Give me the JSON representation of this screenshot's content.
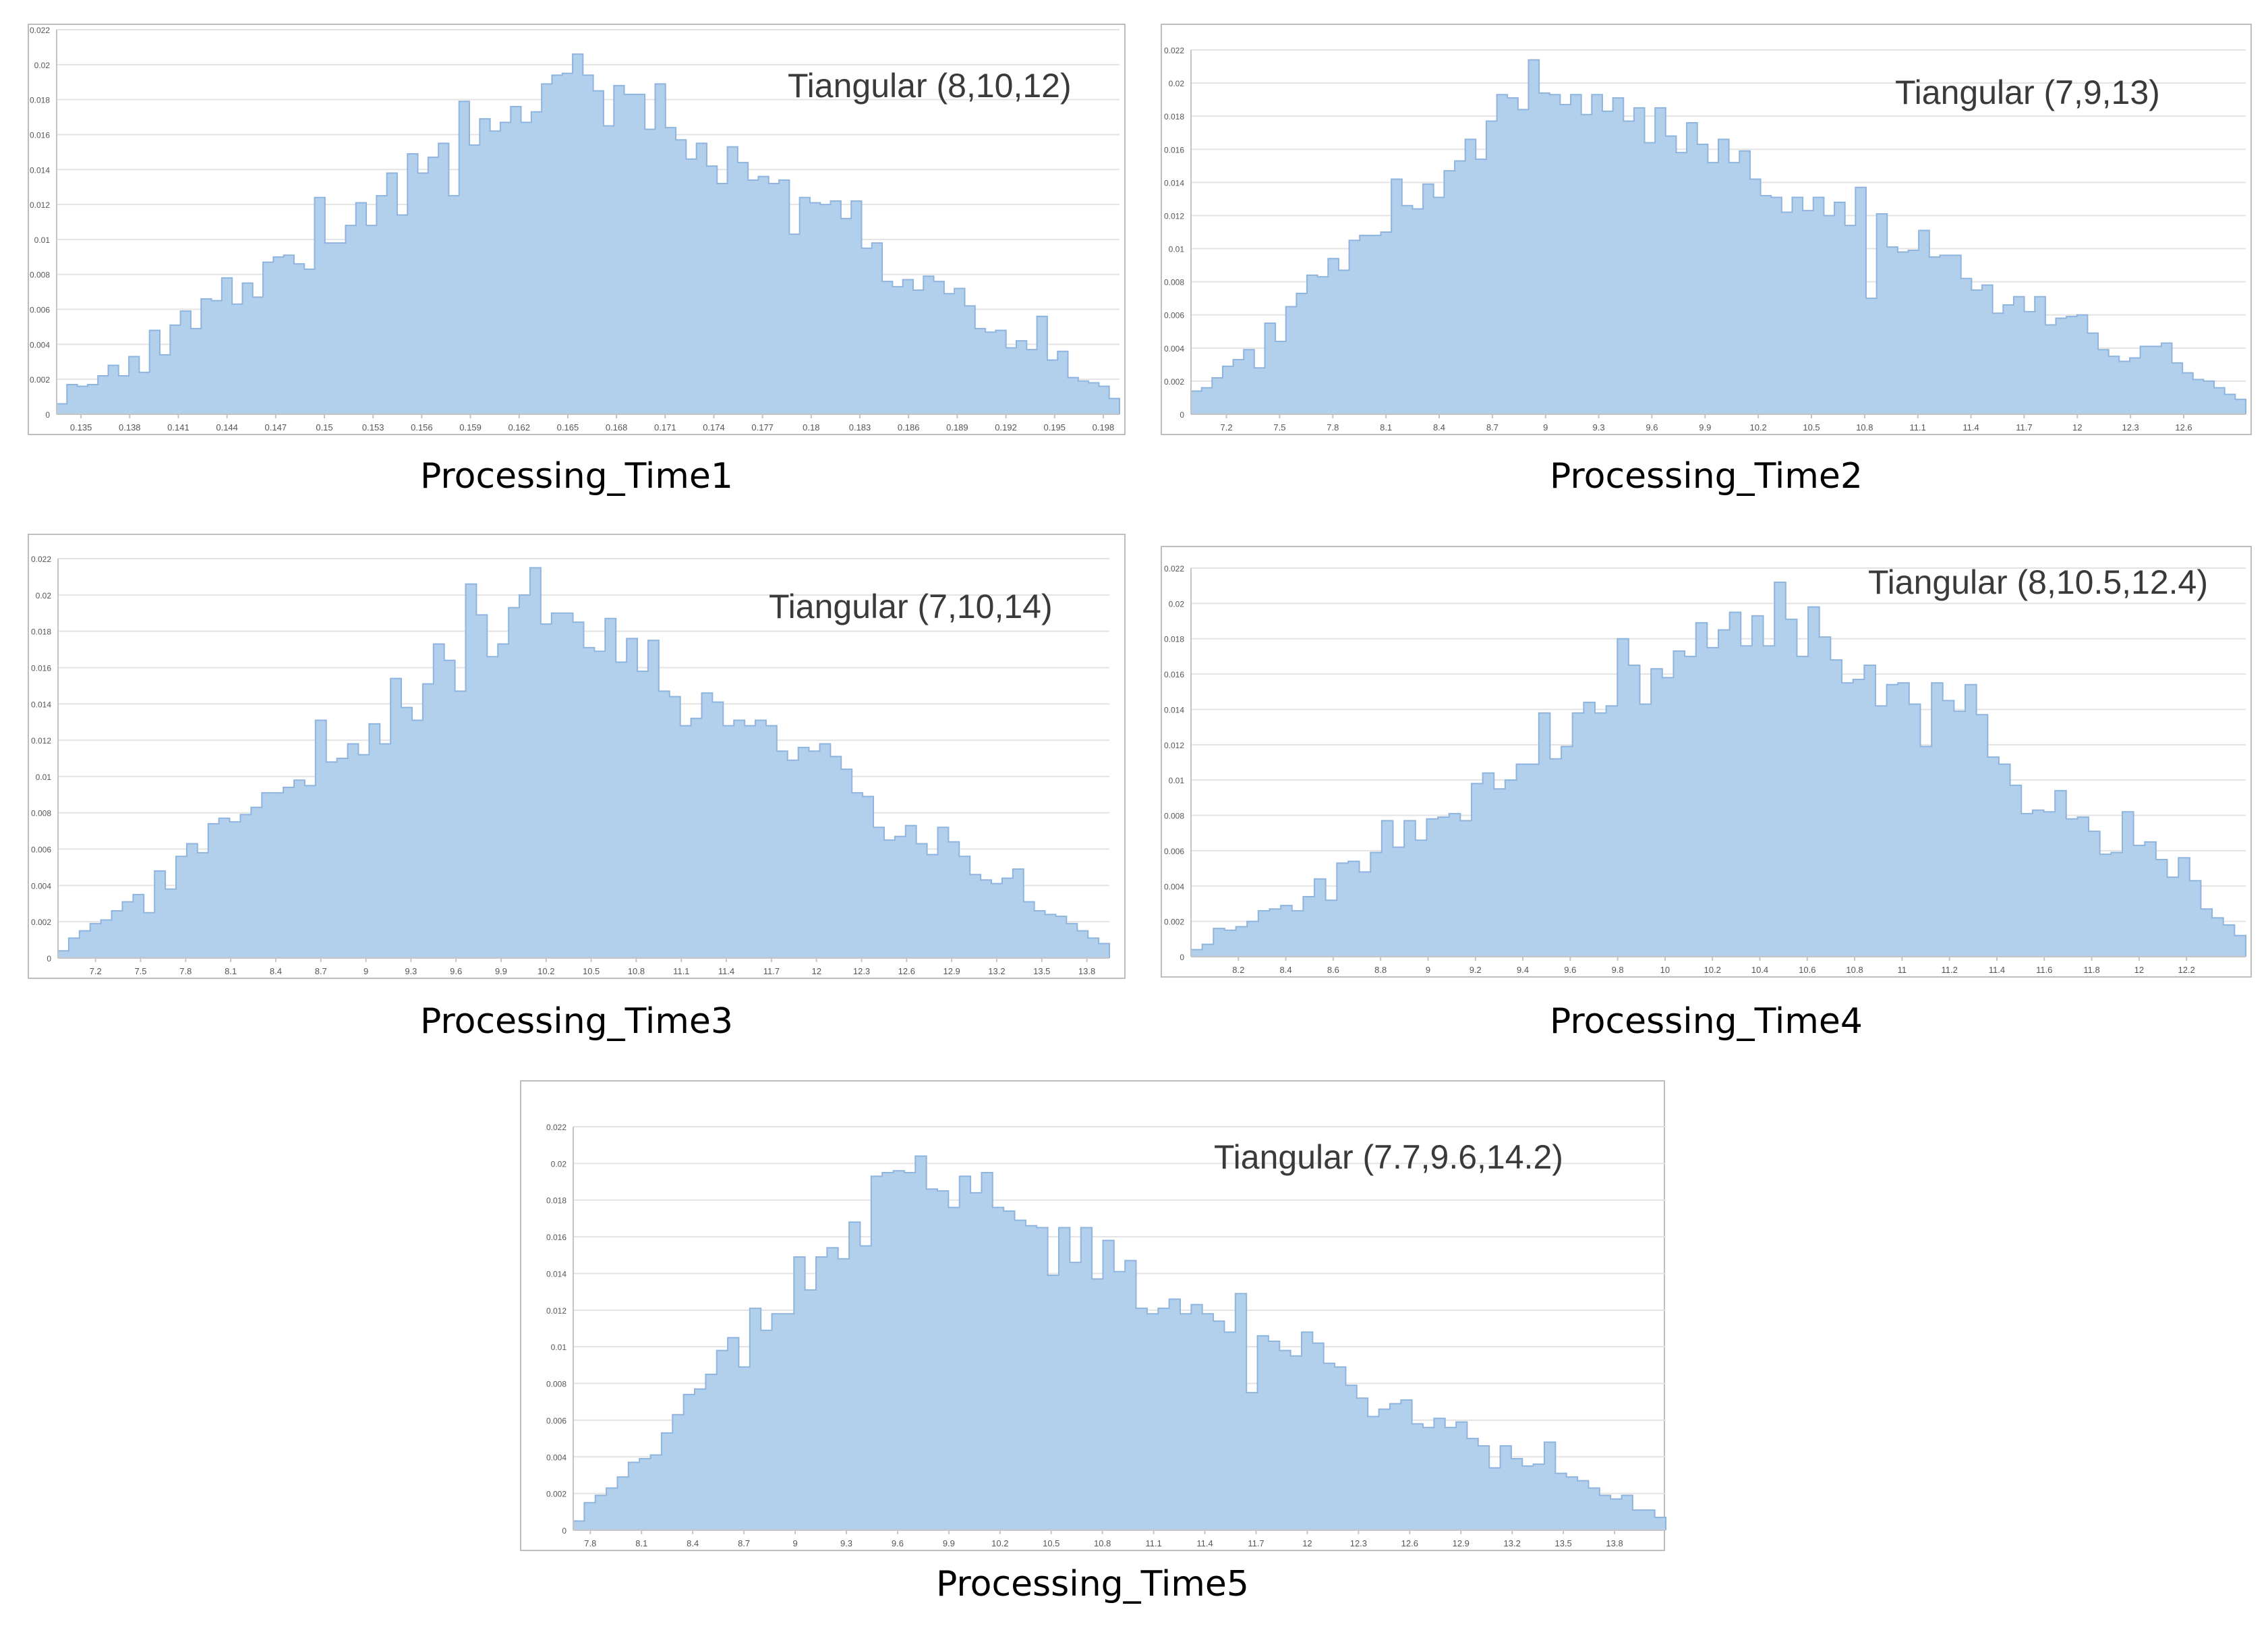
{
  "chart_data": [
    {
      "type": "bar",
      "title": "Processing_Time1",
      "annotation": "Tiangular (8,10,12)",
      "xlim": [
        0.1335,
        0.199
      ],
      "ylim": [
        0,
        0.022
      ],
      "y_ticks": [
        "0",
        "0.002",
        "0.004",
        "0.006",
        "0.008",
        "0.01",
        "0.012",
        "0.014",
        "0.016",
        "0.018",
        "0.02",
        "0.022"
      ],
      "x_ticks": [
        "0.135",
        "0.138",
        "0.141",
        "0.144",
        "0.147",
        "0.15",
        "0.153",
        "0.156",
        "0.159",
        "0.162",
        "0.165",
        "0.168",
        "0.171",
        "0.174",
        "0.177",
        "0.18",
        "0.183",
        "0.186",
        "0.189",
        "0.192",
        "0.195",
        "0.198"
      ],
      "grid": true,
      "values": [
        0.0006,
        0.0017,
        0.0016,
        0.0017,
        0.0022,
        0.0028,
        0.0022,
        0.0033,
        0.0024,
        0.0048,
        0.0034,
        0.0051,
        0.0059,
        0.0049,
        0.0066,
        0.0065,
        0.0078,
        0.0063,
        0.0075,
        0.0067,
        0.0087,
        0.009,
        0.0091,
        0.0086,
        0.0083,
        0.0124,
        0.0098,
        0.0098,
        0.0108,
        0.0121,
        0.0108,
        0.0125,
        0.0138,
        0.0114,
        0.0149,
        0.0138,
        0.0147,
        0.0155,
        0.0125,
        0.0179,
        0.0154,
        0.0169,
        0.0162,
        0.0167,
        0.0176,
        0.0167,
        0.0173,
        0.0189,
        0.0194,
        0.0195,
        0.0206,
        0.0194,
        0.0185,
        0.0165,
        0.0188,
        0.0183,
        0.0183,
        0.0163,
        0.0189,
        0.0164,
        0.0157,
        0.0146,
        0.0155,
        0.0142,
        0.0132,
        0.0153,
        0.0144,
        0.0134,
        0.0136,
        0.0132,
        0.0134,
        0.0103,
        0.0124,
        0.0121,
        0.012,
        0.0122,
        0.0112,
        0.0122,
        0.0095,
        0.0098,
        0.0076,
        0.0073,
        0.0077,
        0.0071,
        0.0079,
        0.0076,
        0.0069,
        0.0072,
        0.0062,
        0.0049,
        0.0047,
        0.0048,
        0.0038,
        0.0042,
        0.0037,
        0.0056,
        0.0031,
        0.0036,
        0.0021,
        0.0019,
        0.0018,
        0.0016,
        0.0009
      ]
    },
    {
      "type": "bar",
      "title": "Processing_Time2",
      "annotation": "Tiangular (7,9,13)",
      "xlim": [
        7.0,
        12.95
      ],
      "ylim": [
        0,
        0.022
      ],
      "y_ticks": [
        "0",
        "0.002",
        "0.004",
        "0.006",
        "0.008",
        "0.01",
        "0.012",
        "0.014",
        "0.016",
        "0.018",
        "0.02",
        "0.022"
      ],
      "x_ticks": [
        "7.2",
        "7.5",
        "7.8",
        "8.1",
        "8.4",
        "8.7",
        "9",
        "9.3",
        "9.6",
        "9.9",
        "10.2",
        "10.5",
        "10.8",
        "11.1",
        "11.4",
        "11.7",
        "12",
        "12.3",
        "12.6"
      ],
      "grid": true,
      "values": [
        0.0014,
        0.0016,
        0.0022,
        0.0029,
        0.0033,
        0.0039,
        0.0028,
        0.0055,
        0.0044,
        0.0065,
        0.0073,
        0.0084,
        0.0083,
        0.0094,
        0.0087,
        0.0105,
        0.0108,
        0.0108,
        0.011,
        0.0142,
        0.0126,
        0.0124,
        0.0139,
        0.0131,
        0.0147,
        0.0153,
        0.0166,
        0.0154,
        0.0177,
        0.0193,
        0.0191,
        0.0184,
        0.0214,
        0.0194,
        0.0193,
        0.0187,
        0.0193,
        0.0181,
        0.0193,
        0.0183,
        0.0191,
        0.0177,
        0.0185,
        0.0164,
        0.0185,
        0.0168,
        0.0158,
        0.0176,
        0.0163,
        0.0152,
        0.0166,
        0.0152,
        0.0159,
        0.0142,
        0.0132,
        0.0131,
        0.0122,
        0.0131,
        0.0123,
        0.0131,
        0.012,
        0.0128,
        0.0114,
        0.0137,
        0.007,
        0.0121,
        0.0101,
        0.0098,
        0.0099,
        0.0111,
        0.0095,
        0.0096,
        0.0096,
        0.0082,
        0.0075,
        0.0078,
        0.0061,
        0.0066,
        0.0071,
        0.0062,
        0.0071,
        0.0054,
        0.0058,
        0.0059,
        0.006,
        0.0049,
        0.0039,
        0.0035,
        0.0032,
        0.0034,
        0.0041,
        0.0041,
        0.0043,
        0.0031,
        0.0025,
        0.0021,
        0.002,
        0.0016,
        0.0012,
        0.0009
      ]
    },
    {
      "type": "bar",
      "title": "Processing_Time3",
      "annotation": "Tiangular (7,10,14)",
      "xlim": [
        6.95,
        13.95
      ],
      "ylim": [
        0,
        0.022
      ],
      "y_ticks": [
        "0",
        "0.002",
        "0.004",
        "0.006",
        "0.008",
        "0.01",
        "0.012",
        "0.014",
        "0.016",
        "0.018",
        "0.02",
        "0.022"
      ],
      "x_ticks": [
        "7.2",
        "7.5",
        "7.8",
        "8.1",
        "8.4",
        "8.7",
        "9",
        "9.3",
        "9.6",
        "9.9",
        "10.2",
        "10.5",
        "10.8",
        "11.1",
        "11.4",
        "11.7",
        "12",
        "12.3",
        "12.6",
        "12.9",
        "13.2",
        "13.5",
        "13.8"
      ],
      "grid": true,
      "values": [
        0.0004,
        0.0011,
        0.0015,
        0.0019,
        0.0021,
        0.0026,
        0.0031,
        0.0035,
        0.0025,
        0.0048,
        0.0038,
        0.0056,
        0.0063,
        0.0058,
        0.0074,
        0.0077,
        0.0075,
        0.0079,
        0.0083,
        0.0091,
        0.0091,
        0.0094,
        0.0098,
        0.0095,
        0.0131,
        0.0108,
        0.011,
        0.0118,
        0.0112,
        0.0129,
        0.0118,
        0.0154,
        0.0138,
        0.0131,
        0.0151,
        0.0173,
        0.0164,
        0.0147,
        0.0206,
        0.0189,
        0.0166,
        0.0173,
        0.0193,
        0.02,
        0.0215,
        0.0184,
        0.019,
        0.019,
        0.0185,
        0.0171,
        0.0169,
        0.0187,
        0.0163,
        0.0176,
        0.0158,
        0.0175,
        0.0147,
        0.0144,
        0.0128,
        0.0132,
        0.0146,
        0.0141,
        0.0128,
        0.0131,
        0.0128,
        0.0131,
        0.0128,
        0.0114,
        0.0109,
        0.0116,
        0.0114,
        0.0118,
        0.0111,
        0.0104,
        0.0091,
        0.0089,
        0.0072,
        0.0065,
        0.0067,
        0.0073,
        0.0063,
        0.0057,
        0.0072,
        0.0064,
        0.0056,
        0.0046,
        0.0043,
        0.0041,
        0.0044,
        0.0049,
        0.0031,
        0.0026,
        0.0024,
        0.0023,
        0.0019,
        0.0015,
        0.0011,
        0.0008
      ]
    },
    {
      "type": "bar",
      "title": "Processing_Time4",
      "annotation": "Tiangular (8,10.5,12.4)",
      "xlim": [
        8.0,
        12.45
      ],
      "ylim": [
        0,
        0.022
      ],
      "y_ticks": [
        "0",
        "0.002",
        "0.004",
        "0.006",
        "0.008",
        "0.01",
        "0.012",
        "0.014",
        "0.016",
        "0.018",
        "0.02",
        "0.022"
      ],
      "x_ticks": [
        "8.2",
        "8.4",
        "8.6",
        "8.8",
        "9",
        "9.2",
        "9.4",
        "9.6",
        "9.8",
        "10",
        "10.2",
        "10.4",
        "10.6",
        "10.8",
        "11",
        "11.2",
        "11.4",
        "11.6",
        "11.8",
        "12",
        "12.2"
      ],
      "grid": true,
      "values": [
        0.0004,
        0.0007,
        0.0016,
        0.0015,
        0.0017,
        0.002,
        0.0026,
        0.0027,
        0.0029,
        0.0026,
        0.0034,
        0.0044,
        0.0032,
        0.0053,
        0.0054,
        0.0048,
        0.0059,
        0.0077,
        0.0062,
        0.0077,
        0.0066,
        0.0078,
        0.0079,
        0.0081,
        0.0077,
        0.0098,
        0.0104,
        0.0095,
        0.01,
        0.0109,
        0.0109,
        0.0138,
        0.0112,
        0.0119,
        0.0138,
        0.0144,
        0.0138,
        0.0142,
        0.018,
        0.0165,
        0.0143,
        0.0163,
        0.0158,
        0.0173,
        0.017,
        0.0189,
        0.0175,
        0.0185,
        0.0195,
        0.0176,
        0.0193,
        0.0176,
        0.0212,
        0.0191,
        0.017,
        0.0198,
        0.0181,
        0.0168,
        0.0155,
        0.0157,
        0.0165,
        0.0142,
        0.0154,
        0.0155,
        0.0143,
        0.0119,
        0.0155,
        0.0145,
        0.0139,
        0.0154,
        0.0137,
        0.0113,
        0.0109,
        0.0097,
        0.0081,
        0.0083,
        0.0082,
        0.0094,
        0.0078,
        0.0079,
        0.0071,
        0.0058,
        0.0059,
        0.0082,
        0.0063,
        0.0065,
        0.0055,
        0.0045,
        0.0056,
        0.0043,
        0.0027,
        0.0022,
        0.0018,
        0.0012
      ]
    },
    {
      "type": "bar",
      "title": "Processing_Time5",
      "annotation": "Tiangular (7.7,9.6,14.2)",
      "xlim": [
        7.7,
        14.1
      ],
      "ylim": [
        0,
        0.022
      ],
      "y_ticks": [
        "0",
        "0.002",
        "0.004",
        "0.006",
        "0.008",
        "0.01",
        "0.012",
        "0.014",
        "0.016",
        "0.018",
        "0.02",
        "0.022"
      ],
      "x_ticks": [
        "7.8",
        "8.1",
        "8.4",
        "8.7",
        "9",
        "9.3",
        "9.6",
        "9.9",
        "10.2",
        "10.5",
        "10.8",
        "11.1",
        "11.4",
        "11.7",
        "12",
        "12.3",
        "12.6",
        "12.9",
        "13.2",
        "13.5",
        "13.8"
      ],
      "grid": true,
      "values": [
        0.0005,
        0.0015,
        0.0019,
        0.0023,
        0.0029,
        0.0037,
        0.0039,
        0.0041,
        0.0053,
        0.0063,
        0.0074,
        0.0077,
        0.0085,
        0.0098,
        0.0105,
        0.0089,
        0.0121,
        0.0109,
        0.0118,
        0.0118,
        0.0149,
        0.0131,
        0.0149,
        0.0154,
        0.0148,
        0.0168,
        0.0155,
        0.0193,
        0.0195,
        0.0196,
        0.0195,
        0.0204,
        0.0186,
        0.0185,
        0.0176,
        0.0193,
        0.0184,
        0.0195,
        0.0176,
        0.0174,
        0.0169,
        0.0166,
        0.0165,
        0.0139,
        0.0165,
        0.0146,
        0.0165,
        0.0137,
        0.0158,
        0.0141,
        0.0147,
        0.0121,
        0.0118,
        0.0121,
        0.0126,
        0.0118,
        0.0123,
        0.0118,
        0.0114,
        0.0108,
        0.0129,
        0.0075,
        0.0106,
        0.0103,
        0.0098,
        0.0095,
        0.0108,
        0.0102,
        0.0091,
        0.0089,
        0.0079,
        0.0072,
        0.0062,
        0.0066,
        0.0069,
        0.0071,
        0.0058,
        0.0056,
        0.0061,
        0.0056,
        0.0059,
        0.005,
        0.0046,
        0.0034,
        0.0046,
        0.0039,
        0.0035,
        0.0036,
        0.0048,
        0.0031,
        0.0029,
        0.0027,
        0.0023,
        0.0019,
        0.0017,
        0.0019,
        0.0011,
        0.0011,
        0.0007
      ]
    }
  ]
}
